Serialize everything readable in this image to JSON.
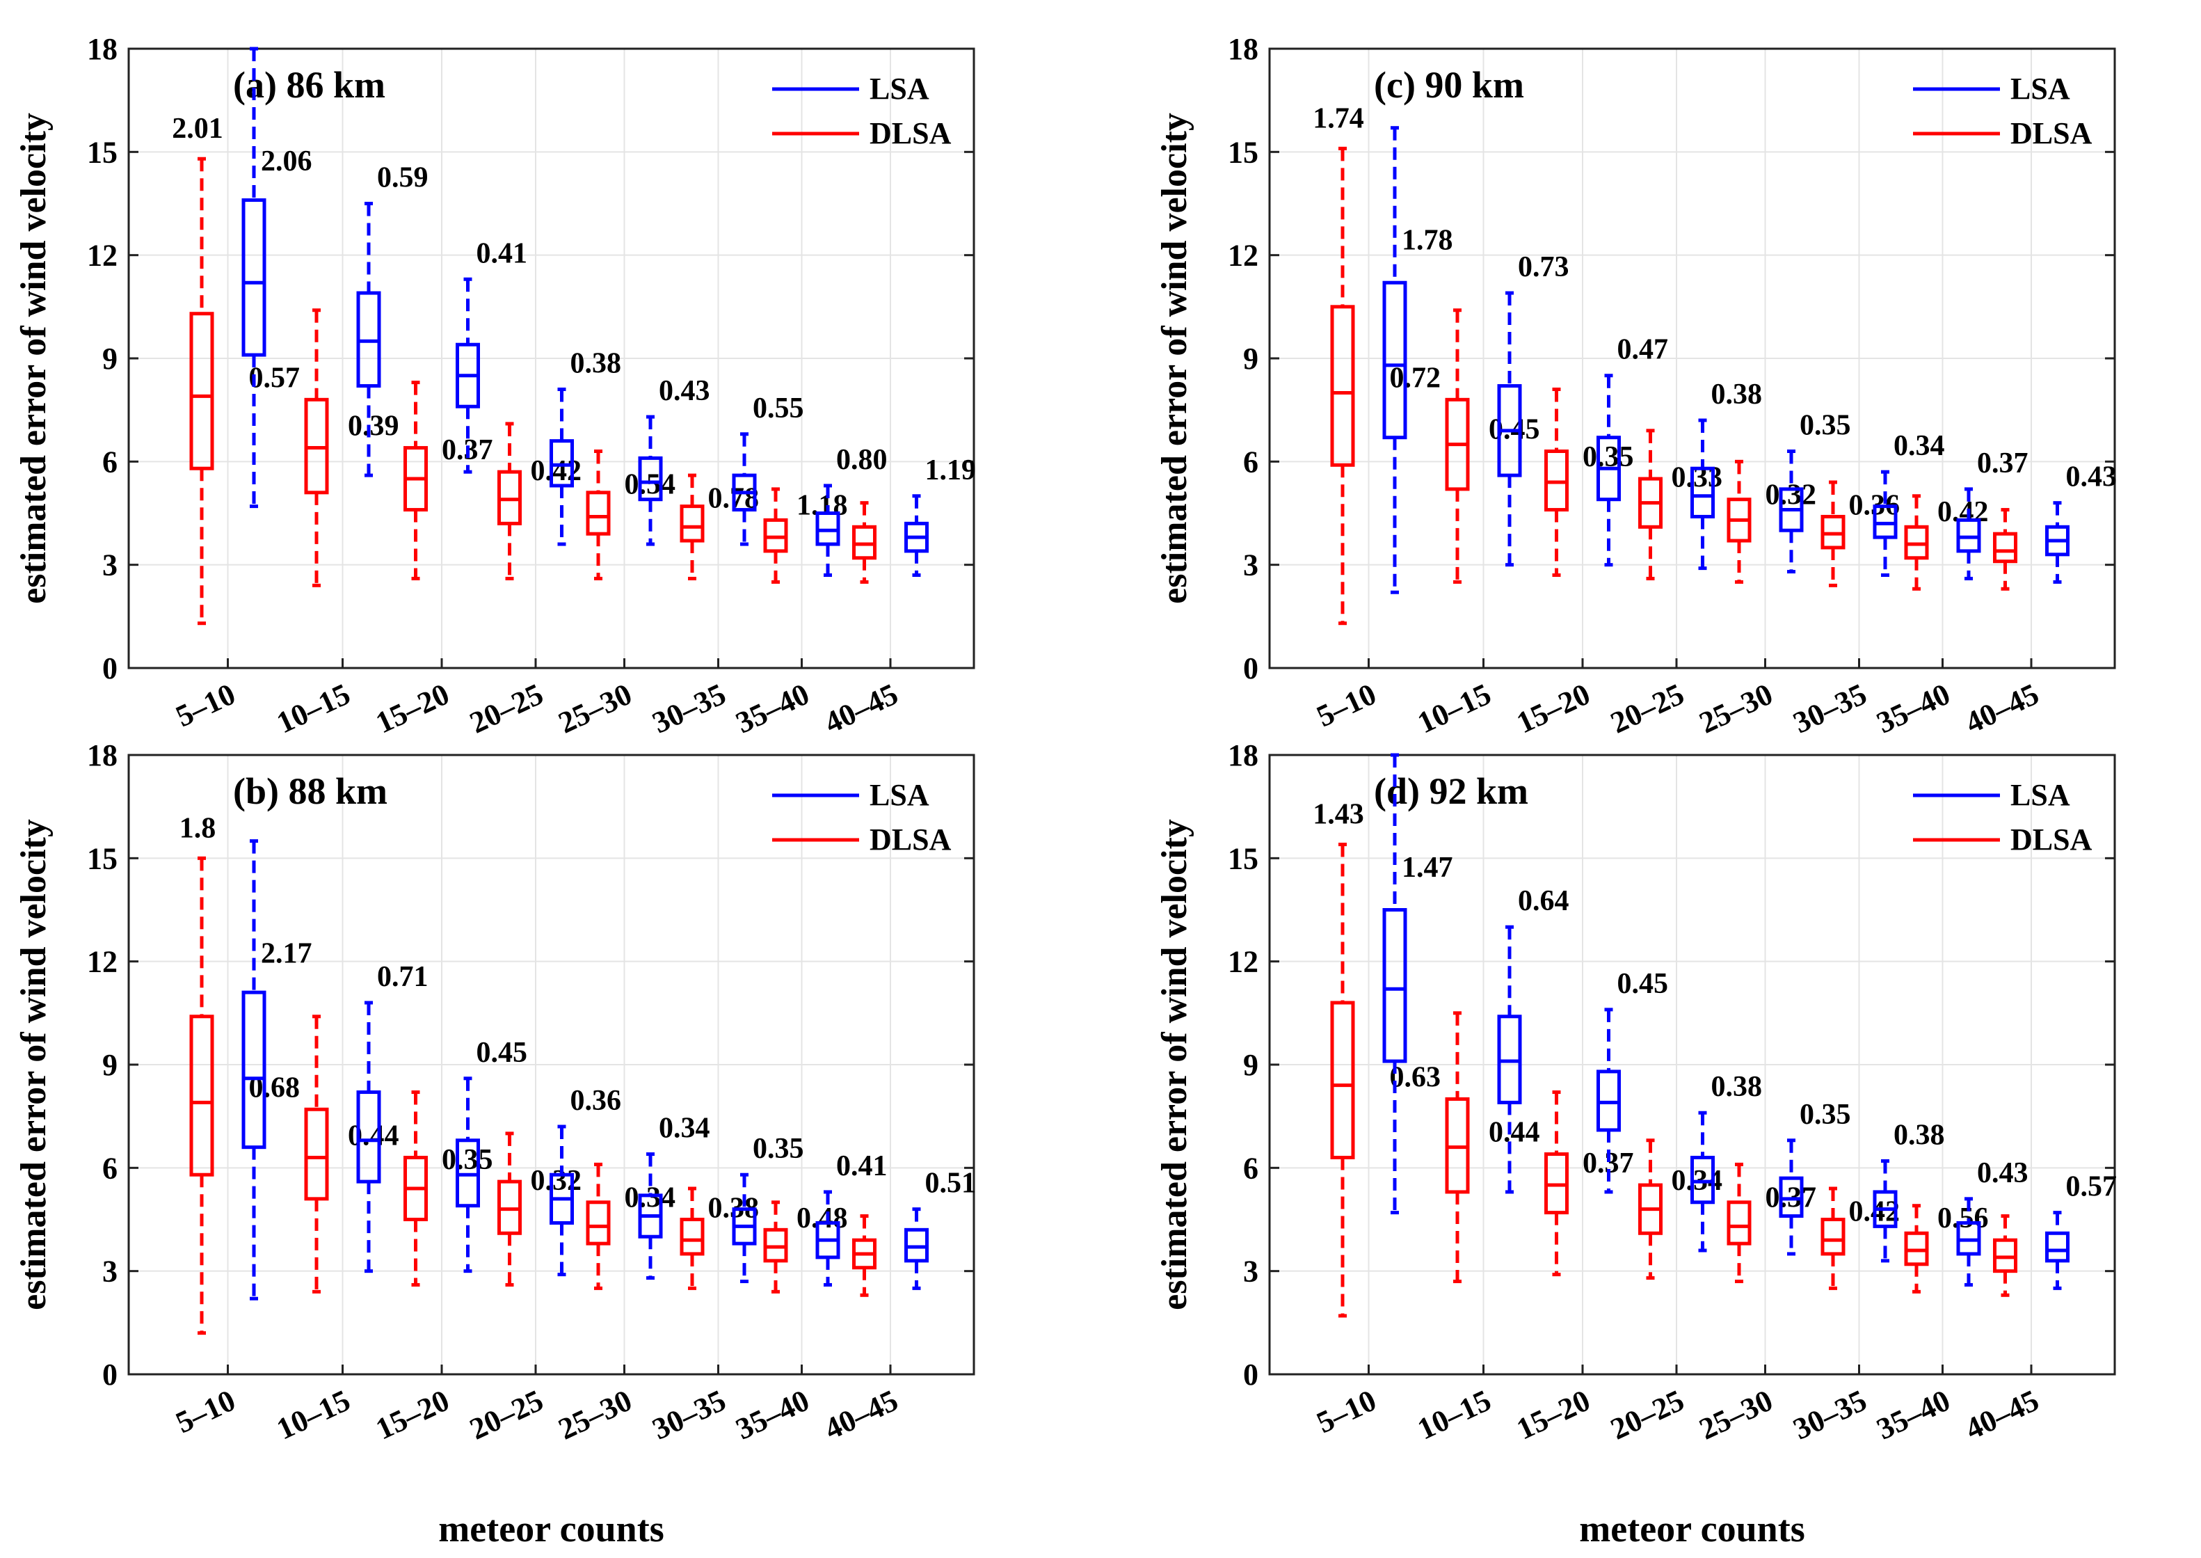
{
  "chart_data": [
    {
      "type": "box",
      "title": "(a) 86 km",
      "xlabel": "",
      "ylabel": "estimated error of wind velocity",
      "ylim": [
        0,
        18
      ],
      "yticks": [
        0,
        3,
        6,
        9,
        12,
        15,
        18
      ],
      "grid": true,
      "legend": {
        "position": "top-right",
        "entries": [
          {
            "name": "LSA",
            "color": "#0000ff"
          },
          {
            "name": "DLSA",
            "color": "#ff0000"
          }
        ]
      },
      "categories": [
        "5–10",
        "10–15",
        "15–20",
        "20–25",
        "25–30",
        "30–35",
        "35–40",
        "40–45"
      ],
      "series": [
        {
          "name": "DLSA",
          "color": "#ff0000",
          "boxes": [
            {
              "min": 1.3,
              "q1": 5.8,
              "median": 7.9,
              "q3": 10.3,
              "max": 14.8
            },
            {
              "min": 2.4,
              "q1": 5.1,
              "median": 6.4,
              "q3": 7.8,
              "max": 10.4
            },
            {
              "min": 2.6,
              "q1": 4.6,
              "median": 5.5,
              "q3": 6.4,
              "max": 8.3
            },
            {
              "min": 2.6,
              "q1": 4.2,
              "median": 4.9,
              "q3": 5.7,
              "max": 7.1
            },
            {
              "min": 2.6,
              "q1": 3.9,
              "median": 4.4,
              "q3": 5.1,
              "max": 6.3
            },
            {
              "min": 2.6,
              "q1": 3.7,
              "median": 4.1,
              "q3": 4.7,
              "max": 5.6
            },
            {
              "min": 2.5,
              "q1": 3.4,
              "median": 3.8,
              "q3": 4.3,
              "max": 5.2
            },
            {
              "min": 2.5,
              "q1": 3.2,
              "median": 3.6,
              "q3": 4.1,
              "max": 4.8
            }
          ],
          "labels": [
            "2.01",
            "0.57",
            "0.39",
            "0.37",
            "0.42",
            "0.54",
            "0.78",
            "1.18"
          ]
        },
        {
          "name": "LSA",
          "color": "#0000ff",
          "boxes": [
            {
              "min": 4.7,
              "q1": 9.1,
              "median": 11.2,
              "q3": 13.6,
              "max": 18.0
            },
            {
              "min": 5.6,
              "q1": 8.2,
              "median": 9.5,
              "q3": 10.9,
              "max": 13.5
            },
            {
              "min": 5.7,
              "q1": 7.6,
              "median": 8.5,
              "q3": 9.4,
              "max": 11.3
            },
            {
              "min": 3.6,
              "q1": 5.3,
              "median": 5.9,
              "q3": 6.6,
              "max": 8.1
            },
            {
              "min": 3.6,
              "q1": 4.9,
              "median": 5.4,
              "q3": 6.1,
              "max": 7.3
            },
            {
              "min": 3.6,
              "q1": 4.6,
              "median": 5.1,
              "q3": 5.6,
              "max": 6.8
            },
            {
              "min": 2.7,
              "q1": 3.6,
              "median": 4.0,
              "q3": 4.5,
              "max": 5.3
            },
            {
              "min": 2.7,
              "q1": 3.4,
              "median": 3.8,
              "q3": 4.2,
              "max": 5.0
            }
          ],
          "labels": [
            "2.06",
            "0.59",
            "0.41",
            "0.38",
            "0.43",
            "0.55",
            "0.80",
            "1.19"
          ]
        }
      ]
    },
    {
      "type": "box",
      "title": "(b) 88 km",
      "xlabel": "meteor counts",
      "ylabel": "estimated error of wind velocity",
      "ylim": [
        0,
        18
      ],
      "yticks": [
        0,
        3,
        6,
        9,
        12,
        15,
        18
      ],
      "grid": true,
      "legend": {
        "position": "top-right",
        "entries": [
          {
            "name": "LSA",
            "color": "#0000ff"
          },
          {
            "name": "DLSA",
            "color": "#ff0000"
          }
        ]
      },
      "categories": [
        "5–10",
        "10–15",
        "15–20",
        "20–25",
        "25–30",
        "30–35",
        "35–40",
        "40–45"
      ],
      "series": [
        {
          "name": "DLSA",
          "color": "#ff0000",
          "boxes": [
            {
              "min": 1.2,
              "q1": 5.8,
              "median": 7.9,
              "q3": 10.4,
              "max": 15.0
            },
            {
              "min": 2.4,
              "q1": 5.1,
              "median": 6.3,
              "q3": 7.7,
              "max": 10.4
            },
            {
              "min": 2.6,
              "q1": 4.5,
              "median": 5.4,
              "q3": 6.3,
              "max": 8.2
            },
            {
              "min": 2.6,
              "q1": 4.1,
              "median": 4.8,
              "q3": 5.6,
              "max": 7.0
            },
            {
              "min": 2.5,
              "q1": 3.8,
              "median": 4.3,
              "q3": 5.0,
              "max": 6.1
            },
            {
              "min": 2.5,
              "q1": 3.5,
              "median": 3.9,
              "q3": 4.5,
              "max": 5.4
            },
            {
              "min": 2.4,
              "q1": 3.3,
              "median": 3.7,
              "q3": 4.2,
              "max": 5.0
            },
            {
              "min": 2.3,
              "q1": 3.1,
              "median": 3.5,
              "q3": 3.9,
              "max": 4.6
            }
          ],
          "labels": [
            "1.8",
            "0.68",
            "0.44",
            "0.35",
            "0.32",
            "0.34",
            "0.38",
            "0.48"
          ]
        },
        {
          "name": "LSA",
          "color": "#0000ff",
          "boxes": [
            {
              "min": 2.2,
              "q1": 6.6,
              "median": 8.6,
              "q3": 11.1,
              "max": 15.5
            },
            {
              "min": 3.0,
              "q1": 5.6,
              "median": 6.8,
              "q3": 8.2,
              "max": 10.8
            },
            {
              "min": 3.0,
              "q1": 4.9,
              "median": 5.8,
              "q3": 6.8,
              "max": 8.6
            },
            {
              "min": 2.9,
              "q1": 4.4,
              "median": 5.1,
              "q3": 5.8,
              "max": 7.2
            },
            {
              "min": 2.8,
              "q1": 4.0,
              "median": 4.6,
              "q3": 5.2,
              "max": 6.4
            },
            {
              "min": 2.7,
              "q1": 3.8,
              "median": 4.3,
              "q3": 4.8,
              "max": 5.8
            },
            {
              "min": 2.6,
              "q1": 3.4,
              "median": 3.9,
              "q3": 4.4,
              "max": 5.3
            },
            {
              "min": 2.5,
              "q1": 3.3,
              "median": 3.7,
              "q3": 4.2,
              "max": 4.8
            }
          ],
          "labels": [
            "2.17",
            "0.71",
            "0.45",
            "0.36",
            "0.34",
            "0.35",
            "0.41",
            "0.51"
          ]
        }
      ]
    },
    {
      "type": "box",
      "title": "(c) 90 km",
      "xlabel": "",
      "ylabel": "estimated error of wind velocity",
      "ylim": [
        0,
        18
      ],
      "yticks": [
        0,
        3,
        6,
        9,
        12,
        15,
        18
      ],
      "grid": true,
      "legend": {
        "position": "top-right",
        "entries": [
          {
            "name": "LSA",
            "color": "#0000ff"
          },
          {
            "name": "DLSA",
            "color": "#ff0000"
          }
        ]
      },
      "categories": [
        "5–10",
        "10–15",
        "15–20",
        "20–25",
        "25–30",
        "30–35",
        "35–40",
        "40–45"
      ],
      "series": [
        {
          "name": "DLSA",
          "color": "#ff0000",
          "boxes": [
            {
              "min": 1.3,
              "q1": 5.9,
              "median": 8.0,
              "q3": 10.5,
              "max": 15.1
            },
            {
              "min": 2.5,
              "q1": 5.2,
              "median": 6.5,
              "q3": 7.8,
              "max": 10.4
            },
            {
              "min": 2.7,
              "q1": 4.6,
              "median": 5.4,
              "q3": 6.3,
              "max": 8.1
            },
            {
              "min": 2.6,
              "q1": 4.1,
              "median": 4.8,
              "q3": 5.5,
              "max": 6.9
            },
            {
              "min": 2.5,
              "q1": 3.7,
              "median": 4.3,
              "q3": 4.9,
              "max": 6.0
            },
            {
              "min": 2.4,
              "q1": 3.5,
              "median": 3.9,
              "q3": 4.4,
              "max": 5.4
            },
            {
              "min": 2.3,
              "q1": 3.2,
              "median": 3.6,
              "q3": 4.1,
              "max": 5.0
            },
            {
              "min": 2.3,
              "q1": 3.1,
              "median": 3.4,
              "q3": 3.9,
              "max": 4.6
            }
          ],
          "labels": [
            "1.74",
            "0.72",
            "0.45",
            "0.35",
            "0.33",
            "0.32",
            "0.36",
            "0.42"
          ]
        },
        {
          "name": "LSA",
          "color": "#0000ff",
          "boxes": [
            {
              "min": 2.2,
              "q1": 6.7,
              "median": 8.8,
              "q3": 11.2,
              "max": 15.7
            },
            {
              "min": 3.0,
              "q1": 5.6,
              "median": 6.9,
              "q3": 8.2,
              "max": 10.9
            },
            {
              "min": 3.0,
              "q1": 4.9,
              "median": 5.8,
              "q3": 6.7,
              "max": 8.5
            },
            {
              "min": 2.9,
              "q1": 4.4,
              "median": 5.0,
              "q3": 5.8,
              "max": 7.2
            },
            {
              "min": 2.8,
              "q1": 4.0,
              "median": 4.6,
              "q3": 5.2,
              "max": 6.3
            },
            {
              "min": 2.7,
              "q1": 3.8,
              "median": 4.2,
              "q3": 4.7,
              "max": 5.7
            },
            {
              "min": 2.6,
              "q1": 3.4,
              "median": 3.8,
              "q3": 4.3,
              "max": 5.2
            },
            {
              "min": 2.5,
              "q1": 3.3,
              "median": 3.7,
              "q3": 4.1,
              "max": 4.8
            }
          ],
          "labels": [
            "1.78",
            "0.73",
            "0.47",
            "0.38",
            "0.35",
            "0.34",
            "0.37",
            "0.43"
          ]
        }
      ]
    },
    {
      "type": "box",
      "title": "(d) 92 km",
      "xlabel": "meteor counts",
      "ylabel": "estimated error of wind velocity",
      "ylim": [
        0,
        18
      ],
      "yticks": [
        0,
        3,
        6,
        9,
        12,
        15,
        18
      ],
      "grid": true,
      "legend": {
        "position": "top-right",
        "entries": [
          {
            "name": "LSA",
            "color": "#0000ff"
          },
          {
            "name": "DLSA",
            "color": "#ff0000"
          }
        ]
      },
      "categories": [
        "5–10",
        "10–15",
        "15–20",
        "20–25",
        "25–30",
        "30–35",
        "35–40",
        "40–45"
      ],
      "series": [
        {
          "name": "DLSA",
          "color": "#ff0000",
          "boxes": [
            {
              "min": 1.7,
              "q1": 6.3,
              "median": 8.4,
              "q3": 10.8,
              "max": 15.4
            },
            {
              "min": 2.7,
              "q1": 5.3,
              "median": 6.6,
              "q3": 8.0,
              "max": 10.5
            },
            {
              "min": 2.9,
              "q1": 4.7,
              "median": 5.5,
              "q3": 6.4,
              "max": 8.2
            },
            {
              "min": 2.8,
              "q1": 4.1,
              "median": 4.8,
              "q3": 5.5,
              "max": 6.8
            },
            {
              "min": 2.7,
              "q1": 3.8,
              "median": 4.3,
              "q3": 5.0,
              "max": 6.1
            },
            {
              "min": 2.5,
              "q1": 3.5,
              "median": 3.9,
              "q3": 4.5,
              "max": 5.4
            },
            {
              "min": 2.4,
              "q1": 3.2,
              "median": 3.6,
              "q3": 4.1,
              "max": 4.9
            },
            {
              "min": 2.3,
              "q1": 3.0,
              "median": 3.4,
              "q3": 3.9,
              "max": 4.6
            }
          ],
          "labels": [
            "1.43",
            "0.63",
            "0.44",
            "0.37",
            "0.34",
            "0.37",
            "0.42",
            "0.56"
          ]
        },
        {
          "name": "LSA",
          "color": "#0000ff",
          "boxes": [
            {
              "min": 4.7,
              "q1": 9.1,
              "median": 11.2,
              "q3": 13.5,
              "max": 18.0
            },
            {
              "min": 5.3,
              "q1": 7.9,
              "median": 9.1,
              "q3": 10.4,
              "max": 13.0
            },
            {
              "min": 5.3,
              "q1": 7.1,
              "median": 7.9,
              "q3": 8.8,
              "max": 10.6
            },
            {
              "min": 3.6,
              "q1": 5.0,
              "median": 5.6,
              "q3": 6.3,
              "max": 7.6
            },
            {
              "min": 3.5,
              "q1": 4.6,
              "median": 5.1,
              "q3": 5.7,
              "max": 6.8
            },
            {
              "min": 3.3,
              "q1": 4.3,
              "median": 4.8,
              "q3": 5.3,
              "max": 6.2
            },
            {
              "min": 2.6,
              "q1": 3.5,
              "median": 3.9,
              "q3": 4.4,
              "max": 5.1
            },
            {
              "min": 2.5,
              "q1": 3.3,
              "median": 3.6,
              "q3": 4.1,
              "max": 4.7
            }
          ],
          "labels": [
            "1.47",
            "0.64",
            "0.45",
            "0.38",
            "0.35",
            "0.38",
            "0.43",
            "0.57"
          ]
        }
      ]
    }
  ]
}
